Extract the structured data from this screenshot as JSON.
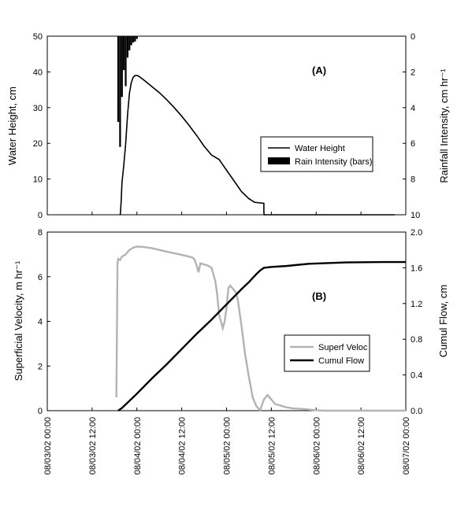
{
  "chart_data": [
    {
      "type": "line",
      "panel_label": "(A)",
      "ylabel": "Water Height, cm",
      "y2label": "Rainfall Intensity, cm hr⁻¹",
      "ylim": [
        0,
        50
      ],
      "y2lim": [
        10,
        0
      ],
      "y2_inverted": true,
      "yticks": [
        "0",
        "10",
        "20",
        "30",
        "40",
        "50"
      ],
      "y2ticks": [
        "0",
        "2",
        "4",
        "6",
        "8",
        "10"
      ],
      "xlim": [
        0,
        96
      ],
      "x_units": "hours after 08/03/02 00:00",
      "legend_position": "right-middle",
      "series": [
        {
          "name": "Water Height",
          "color": "#000000",
          "style": "line",
          "x": [
            19.5,
            19.6,
            19.8,
            20.0,
            20.5,
            21.0,
            21.5,
            22.0,
            22.5,
            23.0,
            23.5,
            24.0,
            24.5,
            26.0,
            28.0,
            30.0,
            32.0,
            34.0,
            36.0,
            38.0,
            40.0,
            42.0,
            44.0,
            46.0,
            47.0,
            48.0,
            50.0,
            52.0,
            54.0,
            55.5,
            58.0,
            58.0,
            58.1,
            60.0,
            70.0,
            80.0,
            90.0,
            93.0
          ],
          "y": [
            0,
            0.5,
            4,
            9,
            14,
            20,
            28,
            34,
            37,
            38.5,
            39,
            39,
            38.8,
            37.6,
            35.9,
            34.2,
            32.2,
            30.0,
            27.6,
            25.0,
            22.2,
            19.2,
            16.7,
            15.5,
            14.0,
            12.5,
            9.5,
            6.5,
            4.5,
            3.5,
            3.2,
            0.5,
            0,
            0,
            0,
            0,
            0,
            0
          ]
        },
        {
          "name": "Rain Intensity (bars)",
          "color": "#000000",
          "style": "bars",
          "x": [
            19.0,
            19.5,
            20.0,
            20.5,
            21.0,
            21.5,
            22.0,
            22.5,
            23.0,
            23.5,
            24.0
          ],
          "y": [
            4.8,
            6.2,
            3.4,
            1.9,
            2.8,
            1.2,
            0.8,
            0.5,
            0.35,
            0.3,
            0.15
          ]
        }
      ]
    },
    {
      "type": "line",
      "panel_label": "(B)",
      "ylabel": "Superficial Velocity, m hr⁻¹",
      "y2label": "Cumul Flow, cm",
      "ylim": [
        0,
        8
      ],
      "y2lim": [
        0,
        2.0
      ],
      "yticks": [
        "0",
        "2",
        "4",
        "6",
        "8"
      ],
      "y2ticks": [
        "0.0",
        "0.4",
        "0.8",
        "1.2",
        "1.6",
        "2.0"
      ],
      "xlim": [
        0,
        96
      ],
      "x_units": "hours after 08/03/02 00:00",
      "xticks": [
        "08/03/02 00:00",
        "08/03/02 12:00",
        "08/04/02 00:00",
        "08/04/02 12:00",
        "08/05/02 00:00",
        "08/05/02 12:00",
        "08/06/02 00:00",
        "08/06/02 12:00",
        "08/07/02 00:00"
      ],
      "legend_position": "right-middle",
      "series": [
        {
          "name": "Superf Veloc",
          "color": "#b3b3b3",
          "axis": "left",
          "x": [
            18.5,
            18.6,
            18.8,
            19.0,
            19.5,
            20.0,
            21.0,
            22.0,
            23.0,
            24.0,
            26.0,
            28.0,
            30.0,
            32.0,
            34.0,
            36.0,
            38.0,
            39.0,
            39.5,
            40.0,
            40.5,
            41.0,
            42.0,
            43.0,
            44.0,
            44.5,
            45.0,
            45.5,
            46.0,
            47.0,
            47.5,
            48.0,
            48.5,
            49.0,
            50.0,
            50.5,
            51.0,
            52.0,
            53.0,
            54.0,
            55.0,
            56.0,
            57.0,
            58.0,
            59.0,
            60.0,
            60.5,
            61.0,
            62.0,
            63.0,
            64.0,
            66.0,
            68.0,
            70.0,
            72.0,
            74.0,
            80.0,
            90.0,
            96.0
          ],
          "y": [
            0.6,
            2.5,
            6.6,
            6.8,
            6.75,
            6.9,
            7.0,
            7.2,
            7.3,
            7.35,
            7.33,
            7.28,
            7.2,
            7.12,
            7.05,
            6.98,
            6.9,
            6.85,
            6.75,
            6.5,
            6.2,
            6.6,
            6.55,
            6.5,
            6.4,
            6.1,
            5.8,
            5.2,
            4.3,
            3.7,
            4.0,
            4.6,
            5.5,
            5.6,
            5.4,
            5.3,
            5.0,
            3.8,
            2.5,
            1.5,
            0.6,
            0.2,
            0.02,
            0.5,
            0.7,
            0.5,
            0.4,
            0.3,
            0.25,
            0.2,
            0.15,
            0.1,
            0.08,
            0.05,
            0.02,
            0.0,
            0.0,
            0.0,
            0.0
          ]
        },
        {
          "name": "Cumul Flow",
          "color": "#000000",
          "axis": "right",
          "x": [
            19.0,
            20.0,
            24.0,
            28.0,
            32.0,
            36.0,
            40.0,
            44.0,
            48.0,
            52.0,
            54.0,
            56.0,
            57.0,
            58.0,
            60.0,
            64.0,
            70.0,
            80.0,
            90.0,
            96.0
          ],
          "y": [
            0.0,
            0.03,
            0.19,
            0.36,
            0.52,
            0.69,
            0.86,
            1.02,
            1.19,
            1.36,
            1.44,
            1.53,
            1.57,
            1.6,
            1.61,
            1.62,
            1.645,
            1.66,
            1.665,
            1.665
          ]
        }
      ]
    }
  ]
}
